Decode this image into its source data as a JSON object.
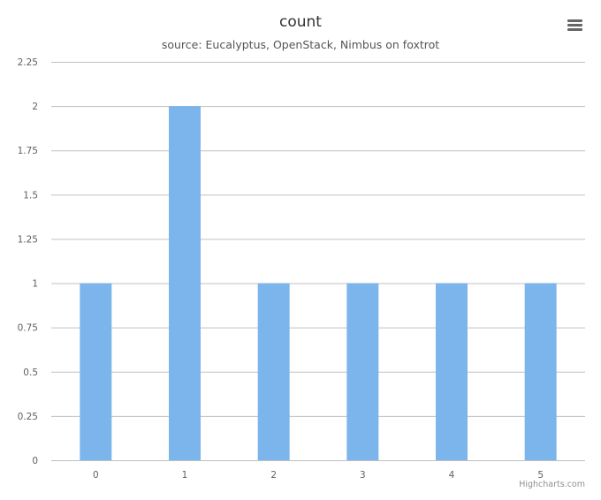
{
  "chart_data": {
    "type": "bar",
    "title": "count",
    "subtitle": "source: Eucalyptus, OpenStack, Nimbus on foxtrot",
    "categories": [
      "0",
      "1",
      "2",
      "3",
      "4",
      "5"
    ],
    "values": [
      1,
      2,
      1,
      1,
      1,
      1
    ],
    "y_ticks": [
      "0",
      "0.25",
      "0.5",
      "0.75",
      "1",
      "1.25",
      "1.5",
      "1.75",
      "2",
      "2.25"
    ],
    "ylim": [
      0,
      2.25
    ],
    "xlabel": "",
    "ylabel": "",
    "grid": true,
    "legend": false,
    "bar_color": "#7cb5ec",
    "grid_color": "#c0c0c0"
  },
  "credits": "Highcharts.com",
  "menu_icon": "hamburger-menu-icon"
}
